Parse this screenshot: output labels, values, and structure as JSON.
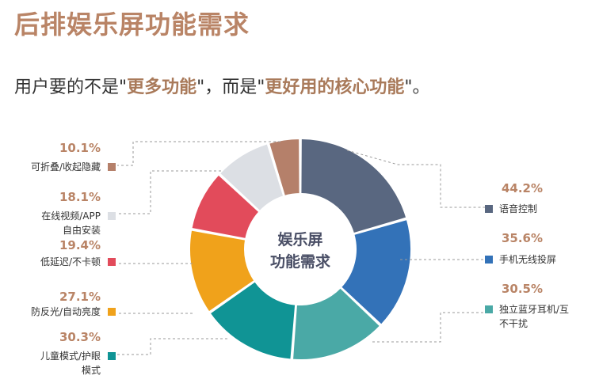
{
  "title": "后排娱乐屏功能需求",
  "subtitle": {
    "part1": "用户要的不是\"",
    "hl1": "更多功能",
    "part2": "\"，而是\"",
    "hl2": "更好用的核心功能",
    "part3": "\"。"
  },
  "chart_data": {
    "type": "pie",
    "variant": "donut",
    "center_label": [
      "娱乐屏",
      "功能需求"
    ],
    "slices": [
      {
        "label": "语音控制",
        "value": 44.2,
        "display": "44.2%",
        "color": "#596780"
      },
      {
        "label": "手机无线投屏",
        "value": 35.6,
        "display": "35.6%",
        "color": "#3372b8"
      },
      {
        "label": "独立蓝牙耳机/互不干扰",
        "value": 30.5,
        "display": "30.5%",
        "color": "#4aa9a6"
      },
      {
        "label": "儿童模式/护眼模式",
        "value": 30.3,
        "display": "30.3%",
        "color": "#109495"
      },
      {
        "label": "防反光/自动亮度",
        "value": 27.1,
        "display": "27.1%",
        "color": "#f0a21b"
      },
      {
        "label": "低延迟/不卡顿",
        "value": 19.4,
        "display": "19.4%",
        "color": "#e24b5b"
      },
      {
        "label": "在线视频/APP自由安装",
        "value": 18.1,
        "display": "18.1%",
        "color": "#dcdfe4"
      },
      {
        "label": "可折叠/收起隐藏",
        "value": 10.1,
        "display": "10.1%",
        "color": "#b5806a"
      }
    ]
  }
}
